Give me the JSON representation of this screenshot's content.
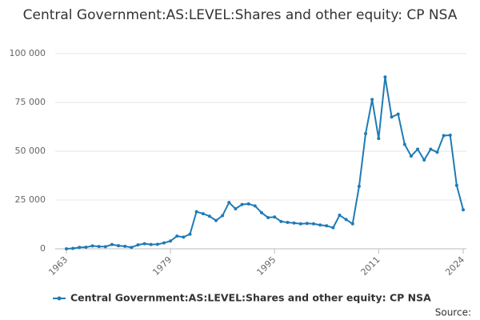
{
  "chart_data": {
    "type": "line",
    "title": "Central Government:AS:LEVEL:Shares and other equity: CP NSA",
    "source": "Source:",
    "x": [
      1963,
      1964,
      1965,
      1966,
      1967,
      1968,
      1969,
      1970,
      1971,
      1972,
      1973,
      1974,
      1975,
      1976,
      1977,
      1978,
      1979,
      1980,
      1981,
      1982,
      1983,
      1984,
      1985,
      1986,
      1987,
      1988,
      1989,
      1990,
      1991,
      1992,
      1993,
      1994,
      1995,
      1996,
      1997,
      1998,
      1999,
      2000,
      2001,
      2002,
      2003,
      2004,
      2005,
      2006,
      2007,
      2008,
      2009,
      2010,
      2011,
      2012,
      2013,
      2014,
      2015,
      2016,
      2017,
      2018,
      2019,
      2020,
      2021,
      2022,
      2023,
      2024
    ],
    "series": [
      {
        "name": "Central Government:AS:LEVEL:Shares and other equity: CP NSA",
        "color": "#1f7bb6",
        "values": [
          0,
          200,
          700,
          800,
          1500,
          1200,
          1100,
          2200,
          1600,
          1300,
          700,
          2000,
          2600,
          2200,
          2300,
          3000,
          4000,
          6500,
          6000,
          7500,
          19000,
          18000,
          16700,
          14500,
          17000,
          23700,
          20500,
          22700,
          23000,
          22000,
          18500,
          16000,
          16300,
          14000,
          13500,
          13200,
          12800,
          13000,
          12800,
          12200,
          11800,
          10800,
          17200,
          15000,
          12800,
          32000,
          59000,
          76500,
          56500,
          88000,
          67500,
          69000,
          53500,
          47500,
          51000,
          45500,
          51000,
          49500,
          58000,
          58200,
          32500,
          20000
        ]
      }
    ],
    "xlim": [
      1963,
      2024
    ],
    "xticks": [
      1963,
      1979,
      1995,
      2011,
      2024
    ],
    "ylim": [
      0,
      100000
    ],
    "yticks": [
      0,
      {
        "value": 25000,
        "label": "25 000"
      },
      {
        "value": 50000,
        "label": "50 000"
      },
      {
        "value": 75000,
        "label": "75 000"
      },
      {
        "value": 100000,
        "label": "100 000"
      }
    ],
    "grid": true
  }
}
